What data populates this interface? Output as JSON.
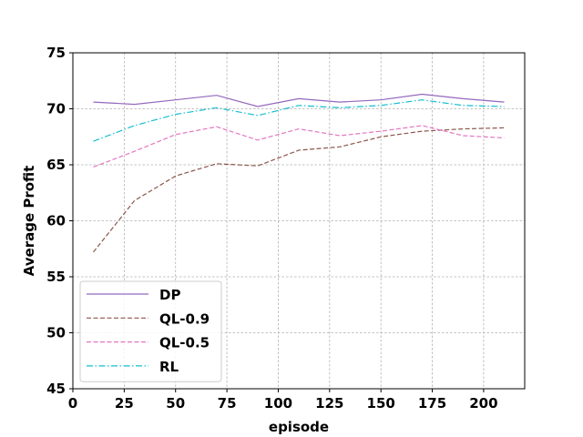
{
  "chart_data": {
    "type": "line",
    "xlabel": "episode",
    "ylabel": "Average Profit",
    "xlim": [
      0,
      220
    ],
    "ylim": [
      45,
      75
    ],
    "xticks": [
      0,
      25,
      50,
      75,
      100,
      125,
      150,
      175,
      200
    ],
    "yticks": [
      45,
      50,
      55,
      60,
      65,
      70,
      75
    ],
    "grid": true,
    "legend_position": "lower-left",
    "x": [
      10,
      30,
      50,
      70,
      90,
      110,
      130,
      150,
      170,
      190,
      210
    ],
    "series": [
      {
        "name": "DP",
        "color": "#9467bd",
        "style": "solid",
        "values": [
          70.6,
          70.4,
          70.8,
          71.2,
          70.2,
          70.9,
          70.6,
          70.8,
          71.3,
          70.9,
          70.6
        ]
      },
      {
        "name": "QL-0.9",
        "color": "#8c564b",
        "style": "dashed",
        "values": [
          57.2,
          61.8,
          64.0,
          65.1,
          64.9,
          66.3,
          66.6,
          67.5,
          68.0,
          68.2,
          68.3
        ]
      },
      {
        "name": "QL-0.5",
        "color": "#e377c2",
        "style": "dashed",
        "values": [
          64.8,
          66.2,
          67.7,
          68.4,
          67.2,
          68.2,
          67.6,
          68.0,
          68.5,
          67.6,
          67.4
        ]
      },
      {
        "name": "RL",
        "color": "#17becf",
        "style": "dashdot",
        "values": [
          67.1,
          68.5,
          69.5,
          70.1,
          69.4,
          70.3,
          70.1,
          70.3,
          70.8,
          70.3,
          70.2
        ]
      }
    ]
  }
}
